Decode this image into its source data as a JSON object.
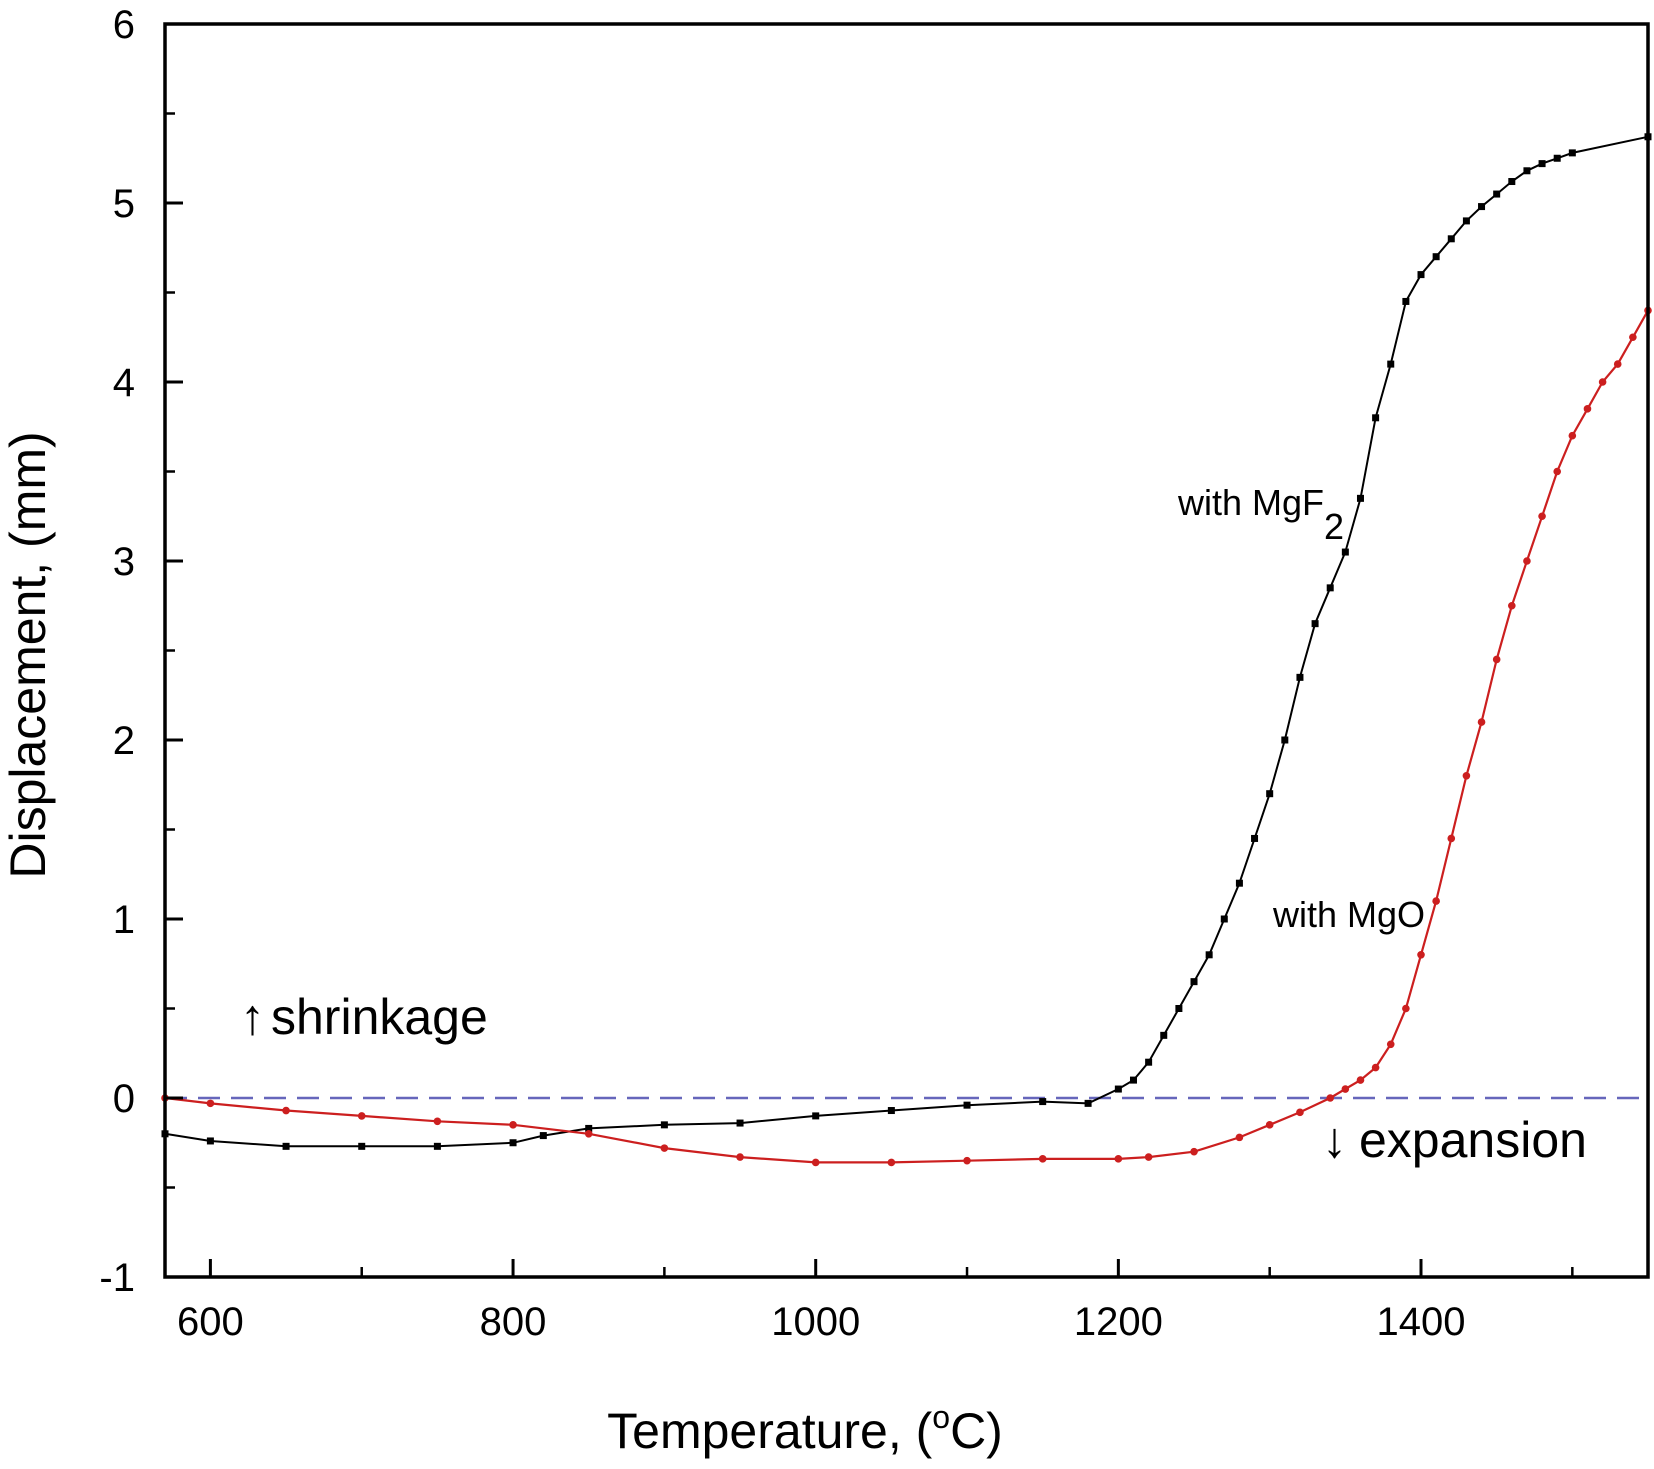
{
  "chart_data": {
    "type": "line",
    "xlabel_main": "Temperature, (",
    "xlabel_sup": "o",
    "xlabel_end": "C)",
    "ylabel": "Displacement, (mm)",
    "xlim": [
      570,
      1550
    ],
    "ylim": [
      -1,
      6
    ],
    "x_ticks": [
      600,
      800,
      1000,
      1200,
      1400
    ],
    "y_ticks": [
      -1,
      0,
      1,
      2,
      3,
      4,
      5,
      6
    ],
    "grid": false,
    "reference_line": {
      "y": 0,
      "style": "dashed",
      "color": "#6666bb"
    },
    "colors": {
      "mgf2": "#000000",
      "mgo": "#cc1f1f"
    },
    "annotations": {
      "mgf2_label_main": "with MgF",
      "mgf2_label_sub": "2",
      "mgo_label": "with MgO",
      "shrinkage_arrow": "↑",
      "shrinkage": "shrinkage",
      "expansion_arrow": "↓",
      "expansion": "expansion"
    },
    "series": [
      {
        "key": "mgf2",
        "x": [
          570,
          600,
          650,
          700,
          750,
          800,
          820,
          850,
          900,
          950,
          1000,
          1050,
          1100,
          1150,
          1180,
          1200,
          1210,
          1220,
          1230,
          1240,
          1250,
          1260,
          1270,
          1280,
          1290,
          1300,
          1310,
          1320,
          1330,
          1340,
          1350,
          1360,
          1370,
          1380,
          1390,
          1400,
          1410,
          1420,
          1430,
          1440,
          1450,
          1460,
          1470,
          1480,
          1490,
          1500,
          1550
        ],
        "y": [
          -0.2,
          -0.24,
          -0.27,
          -0.27,
          -0.27,
          -0.25,
          -0.21,
          -0.17,
          -0.15,
          -0.14,
          -0.1,
          -0.07,
          -0.04,
          -0.02,
          -0.03,
          0.05,
          0.1,
          0.2,
          0.35,
          0.5,
          0.65,
          0.8,
          1.0,
          1.2,
          1.45,
          1.7,
          2.0,
          2.35,
          2.65,
          2.85,
          3.05,
          3.35,
          3.8,
          4.1,
          4.45,
          4.6,
          4.7,
          4.8,
          4.9,
          4.98,
          5.05,
          5.12,
          5.18,
          5.22,
          5.25,
          5.28,
          5.37
        ]
      },
      {
        "key": "mgo",
        "x": [
          570,
          600,
          650,
          700,
          750,
          800,
          850,
          900,
          950,
          1000,
          1050,
          1100,
          1150,
          1200,
          1220,
          1250,
          1280,
          1300,
          1320,
          1340,
          1350,
          1360,
          1370,
          1380,
          1390,
          1400,
          1410,
          1420,
          1430,
          1440,
          1450,
          1460,
          1470,
          1480,
          1490,
          1500,
          1510,
          1520,
          1530,
          1540,
          1550
        ],
        "y": [
          0.0,
          -0.03,
          -0.07,
          -0.1,
          -0.13,
          -0.15,
          -0.2,
          -0.28,
          -0.33,
          -0.36,
          -0.36,
          -0.35,
          -0.34,
          -0.34,
          -0.33,
          -0.3,
          -0.22,
          -0.15,
          -0.08,
          0.0,
          0.05,
          0.1,
          0.17,
          0.3,
          0.5,
          0.8,
          1.1,
          1.45,
          1.8,
          2.1,
          2.45,
          2.75,
          3.0,
          3.25,
          3.5,
          3.7,
          3.85,
          4.0,
          4.1,
          4.25,
          4.4
        ]
      }
    ]
  }
}
